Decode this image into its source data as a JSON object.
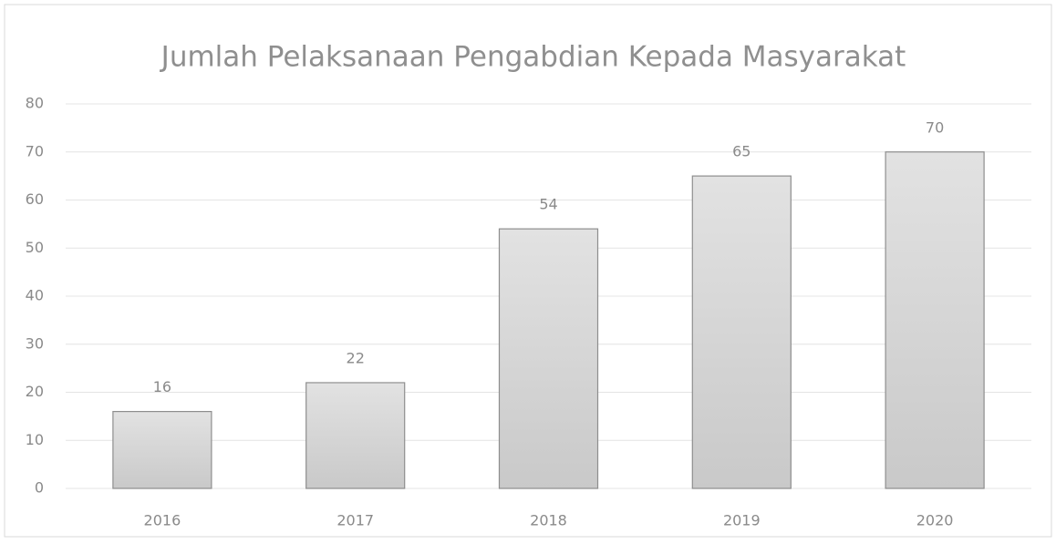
{
  "chart_data": {
    "type": "bar",
    "title": "Jumlah Pelaksanaan Pengabdian Kepada Masyarakat",
    "categories": [
      "2016",
      "2017",
      "2018",
      "2019",
      "2020"
    ],
    "values": [
      16,
      22,
      54,
      65,
      70
    ],
    "color": "#d4d4d4",
    "ylim": [
      0,
      80
    ],
    "yticks": [
      0,
      10,
      20,
      30,
      40,
      50,
      60,
      70,
      80
    ],
    "grid": true
  }
}
